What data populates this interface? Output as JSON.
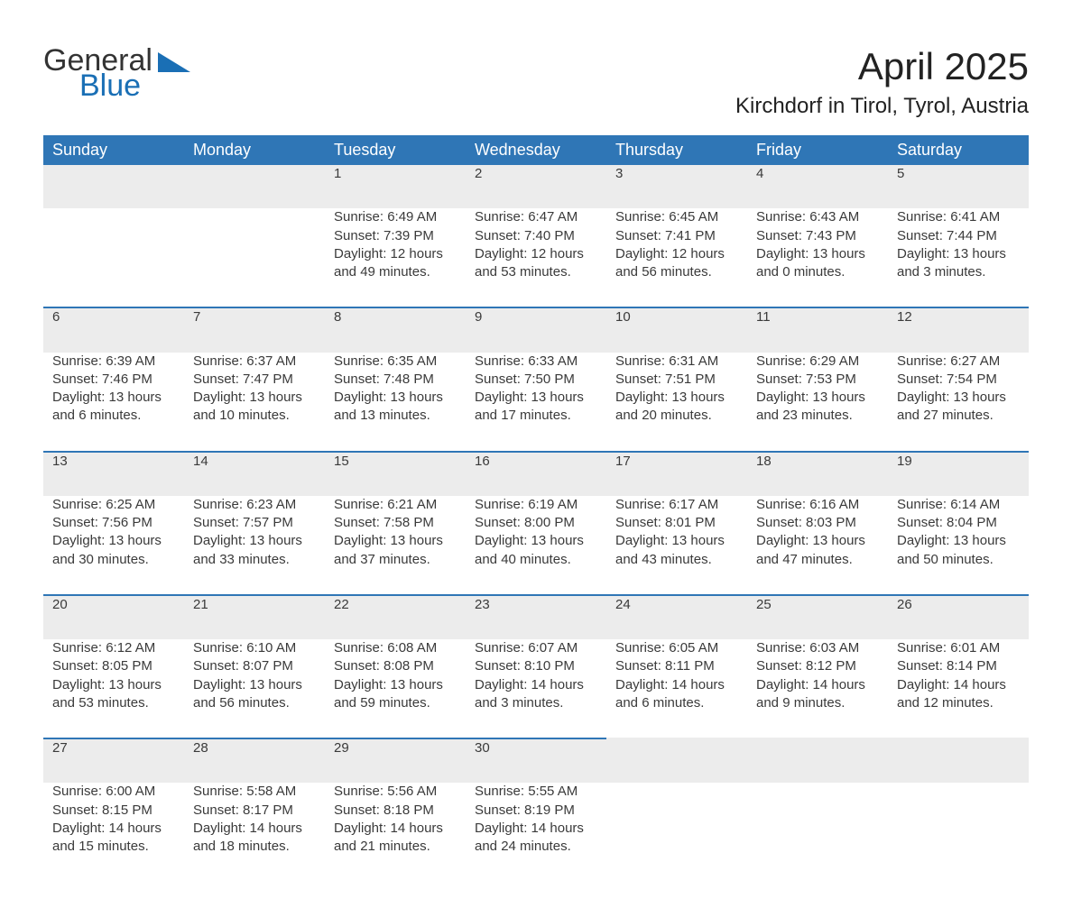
{
  "brand": {
    "word1": "General",
    "word2": "Blue",
    "accent": "#1a6fb5"
  },
  "title": "April 2025",
  "location": "Kirchdorf in Tirol, Tyrol, Austria",
  "colors": {
    "header_bg": "#2f76b6",
    "header_text": "#ffffff",
    "row_stripe": "#ececec",
    "row_border": "#2f76b6",
    "body_text": "#3a3a3a",
    "background": "#ffffff"
  },
  "weekdays": [
    "Sunday",
    "Monday",
    "Tuesday",
    "Wednesday",
    "Thursday",
    "Friday",
    "Saturday"
  ],
  "weeks": [
    [
      null,
      null,
      {
        "day": "1",
        "sunrise": "6:49 AM",
        "sunset": "7:39 PM",
        "daylight": "12 hours and 49 minutes."
      },
      {
        "day": "2",
        "sunrise": "6:47 AM",
        "sunset": "7:40 PM",
        "daylight": "12 hours and 53 minutes."
      },
      {
        "day": "3",
        "sunrise": "6:45 AM",
        "sunset": "7:41 PM",
        "daylight": "12 hours and 56 minutes."
      },
      {
        "day": "4",
        "sunrise": "6:43 AM",
        "sunset": "7:43 PM",
        "daylight": "13 hours and 0 minutes."
      },
      {
        "day": "5",
        "sunrise": "6:41 AM",
        "sunset": "7:44 PM",
        "daylight": "13 hours and 3 minutes."
      }
    ],
    [
      {
        "day": "6",
        "sunrise": "6:39 AM",
        "sunset": "7:46 PM",
        "daylight": "13 hours and 6 minutes."
      },
      {
        "day": "7",
        "sunrise": "6:37 AM",
        "sunset": "7:47 PM",
        "daylight": "13 hours and 10 minutes."
      },
      {
        "day": "8",
        "sunrise": "6:35 AM",
        "sunset": "7:48 PM",
        "daylight": "13 hours and 13 minutes."
      },
      {
        "day": "9",
        "sunrise": "6:33 AM",
        "sunset": "7:50 PM",
        "daylight": "13 hours and 17 minutes."
      },
      {
        "day": "10",
        "sunrise": "6:31 AM",
        "sunset": "7:51 PM",
        "daylight": "13 hours and 20 minutes."
      },
      {
        "day": "11",
        "sunrise": "6:29 AM",
        "sunset": "7:53 PM",
        "daylight": "13 hours and 23 minutes."
      },
      {
        "day": "12",
        "sunrise": "6:27 AM",
        "sunset": "7:54 PM",
        "daylight": "13 hours and 27 minutes."
      }
    ],
    [
      {
        "day": "13",
        "sunrise": "6:25 AM",
        "sunset": "7:56 PM",
        "daylight": "13 hours and 30 minutes."
      },
      {
        "day": "14",
        "sunrise": "6:23 AM",
        "sunset": "7:57 PM",
        "daylight": "13 hours and 33 minutes."
      },
      {
        "day": "15",
        "sunrise": "6:21 AM",
        "sunset": "7:58 PM",
        "daylight": "13 hours and 37 minutes."
      },
      {
        "day": "16",
        "sunrise": "6:19 AM",
        "sunset": "8:00 PM",
        "daylight": "13 hours and 40 minutes."
      },
      {
        "day": "17",
        "sunrise": "6:17 AM",
        "sunset": "8:01 PM",
        "daylight": "13 hours and 43 minutes."
      },
      {
        "day": "18",
        "sunrise": "6:16 AM",
        "sunset": "8:03 PM",
        "daylight": "13 hours and 47 minutes."
      },
      {
        "day": "19",
        "sunrise": "6:14 AM",
        "sunset": "8:04 PM",
        "daylight": "13 hours and 50 minutes."
      }
    ],
    [
      {
        "day": "20",
        "sunrise": "6:12 AM",
        "sunset": "8:05 PM",
        "daylight": "13 hours and 53 minutes."
      },
      {
        "day": "21",
        "sunrise": "6:10 AM",
        "sunset": "8:07 PM",
        "daylight": "13 hours and 56 minutes."
      },
      {
        "day": "22",
        "sunrise": "6:08 AM",
        "sunset": "8:08 PM",
        "daylight": "13 hours and 59 minutes."
      },
      {
        "day": "23",
        "sunrise": "6:07 AM",
        "sunset": "8:10 PM",
        "daylight": "14 hours and 3 minutes."
      },
      {
        "day": "24",
        "sunrise": "6:05 AM",
        "sunset": "8:11 PM",
        "daylight": "14 hours and 6 minutes."
      },
      {
        "day": "25",
        "sunrise": "6:03 AM",
        "sunset": "8:12 PM",
        "daylight": "14 hours and 9 minutes."
      },
      {
        "day": "26",
        "sunrise": "6:01 AM",
        "sunset": "8:14 PM",
        "daylight": "14 hours and 12 minutes."
      }
    ],
    [
      {
        "day": "27",
        "sunrise": "6:00 AM",
        "sunset": "8:15 PM",
        "daylight": "14 hours and 15 minutes."
      },
      {
        "day": "28",
        "sunrise": "5:58 AM",
        "sunset": "8:17 PM",
        "daylight": "14 hours and 18 minutes."
      },
      {
        "day": "29",
        "sunrise": "5:56 AM",
        "sunset": "8:18 PM",
        "daylight": "14 hours and 21 minutes."
      },
      {
        "day": "30",
        "sunrise": "5:55 AM",
        "sunset": "8:19 PM",
        "daylight": "14 hours and 24 minutes."
      },
      null,
      null,
      null
    ]
  ],
  "labels": {
    "sunrise": "Sunrise:",
    "sunset": "Sunset:",
    "daylight": "Daylight:"
  }
}
